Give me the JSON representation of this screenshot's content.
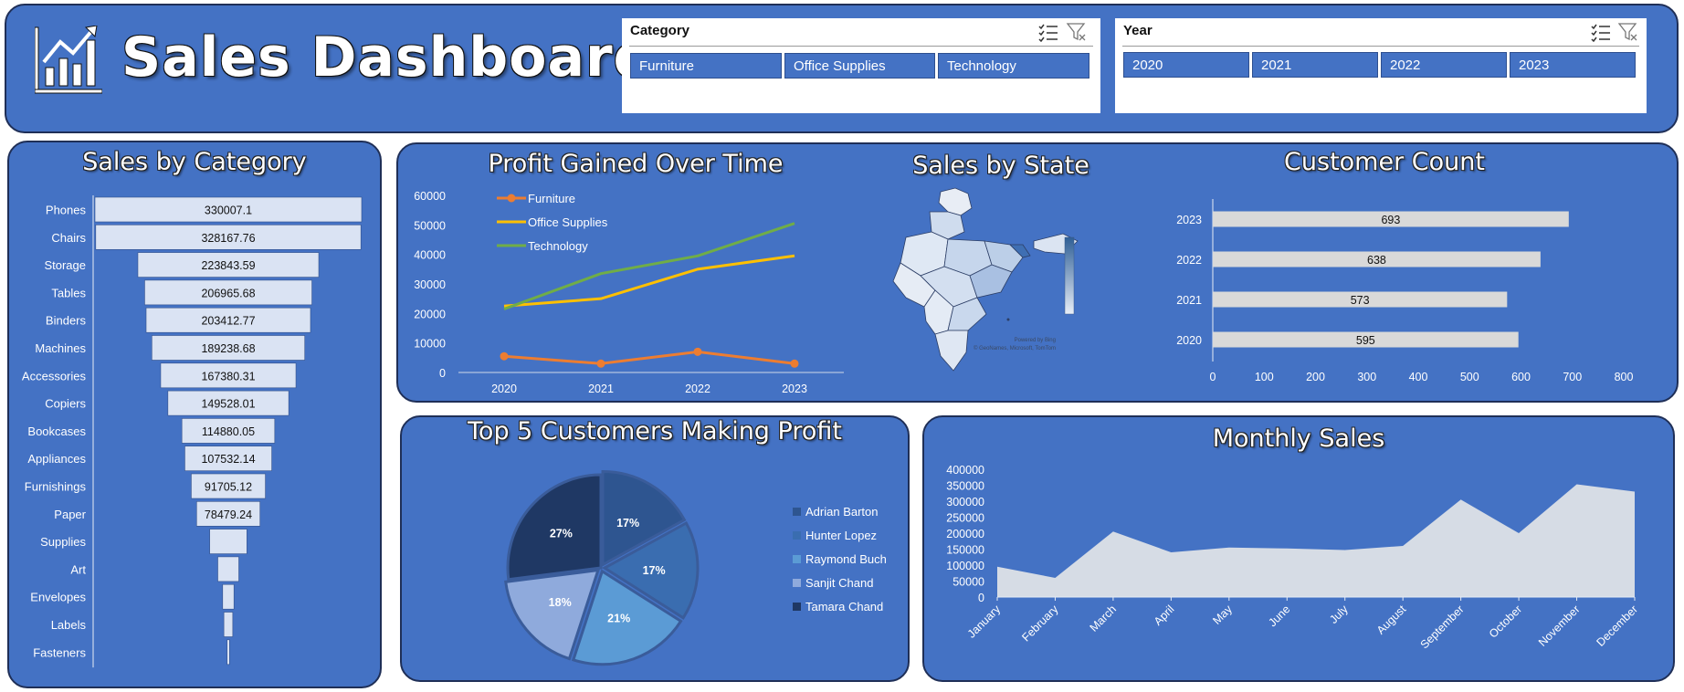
{
  "header": {
    "title": "Sales Dashboard",
    "icon": "bar-chart-icon"
  },
  "slicers": {
    "category": {
      "title": "Category",
      "items": [
        "Furniture",
        "Office Supplies",
        "Technology"
      ]
    },
    "year": {
      "title": "Year",
      "items": [
        "2020",
        "2021",
        "2022",
        "2023"
      ]
    }
  },
  "colors": {
    "panel": "#4472C4",
    "border": "#1F2F57",
    "bar": "#DAE3F3",
    "furniture": "#ED7D31",
    "office": "#FFC000",
    "technology": "#70AD47"
  },
  "panels": {
    "sales_by_category": "Sales by Category",
    "profit_over_time": "Profit Gained Over Time",
    "sales_by_state": "Sales by State",
    "customer_count": "Customer Count",
    "top5": "Top 5 Customers Making Profit",
    "monthly": "Monthly Sales"
  },
  "map": {
    "attribution_1": "Powered by Bing",
    "attribution_2": "© GeoNames, Microsoft, TomTom"
  },
  "chart_data": [
    {
      "type": "bar",
      "title": "Sales by Category",
      "orientation": "horizontal-funnel",
      "categories": [
        "Phones",
        "Chairs",
        "Storage",
        "Tables",
        "Binders",
        "Machines",
        "Accessories",
        "Copiers",
        "Bookcases",
        "Appliances",
        "Furnishings",
        "Paper",
        "Supplies",
        "Art",
        "Envelopes",
        "Labels",
        "Fasteners"
      ],
      "values": [
        330007.1,
        328167.76,
        223843.59,
        206965.68,
        203412.77,
        189238.68,
        167380.31,
        149528.01,
        114880.05,
        107532.14,
        91705.12,
        78479.24,
        46000,
        26000,
        14000,
        11000,
        3000
      ],
      "labels": [
        "330007.1",
        "328167.76",
        "223843.59",
        "206965.68",
        "203412.77",
        "189238.68",
        "167380.31",
        "149528.01",
        "114880.05",
        "107532.14",
        "91705.12",
        "78479.24",
        "",
        "",
        "",
        "",
        ""
      ]
    },
    {
      "type": "line",
      "title": "Profit Gained Over Time",
      "x": [
        "2020",
        "2021",
        "2022",
        "2023"
      ],
      "ylim": [
        0,
        60000
      ],
      "yticks": [
        "0",
        "10000",
        "20000",
        "30000",
        "40000",
        "50000",
        "60000"
      ],
      "series": [
        {
          "name": "Furniture",
          "values": [
            5500,
            3000,
            7000,
            3000
          ]
        },
        {
          "name": "Office Supplies",
          "values": [
            22500,
            25000,
            35000,
            39500
          ]
        },
        {
          "name": "Technology",
          "values": [
            21500,
            33500,
            39500,
            50500
          ]
        }
      ]
    },
    {
      "type": "bar",
      "title": "Customer Count",
      "orientation": "horizontal",
      "categories": [
        "2023",
        "2022",
        "2021",
        "2020"
      ],
      "values": [
        693,
        638,
        573,
        595
      ],
      "xlim": [
        0,
        800
      ],
      "xticks": [
        "0",
        "100",
        "200",
        "300",
        "400",
        "500",
        "600",
        "700",
        "800"
      ]
    },
    {
      "type": "pie",
      "title": "Top 5 Customers Making Profit",
      "labels": [
        "Adrian Barton",
        "Hunter Lopez",
        "Raymond Buch",
        "Sanjit Chand",
        "Tamara Chand"
      ],
      "values": [
        17,
        17,
        21,
        18,
        27
      ],
      "display": [
        "17%",
        "17%",
        "21%",
        "18%",
        "27%"
      ]
    },
    {
      "type": "area",
      "title": "Monthly Sales",
      "categories": [
        "January",
        "February",
        "March",
        "April",
        "May",
        "June",
        "July",
        "August",
        "September",
        "October",
        "November",
        "December"
      ],
      "values": [
        95000,
        60000,
        205000,
        140000,
        155000,
        152000,
        147000,
        160000,
        305000,
        200000,
        353000,
        330000
      ],
      "ylim": [
        0,
        400000
      ],
      "yticks": [
        "0",
        "50000",
        "100000",
        "150000",
        "200000",
        "250000",
        "300000",
        "350000",
        "400000"
      ]
    }
  ]
}
